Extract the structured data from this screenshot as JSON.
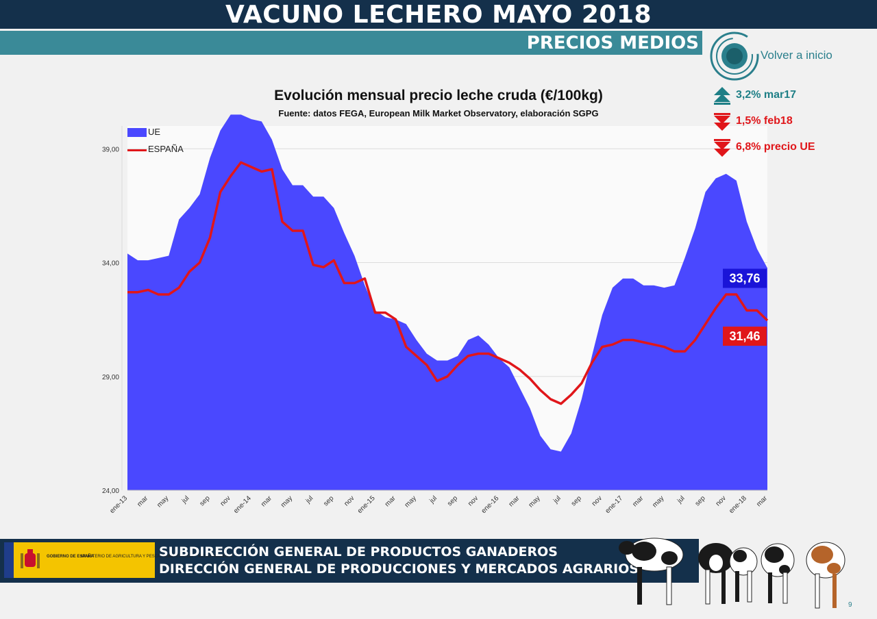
{
  "header": {
    "title": "VACUNO LECHERO MAYO 2018",
    "subtitle": "PRECIOS MEDIOS"
  },
  "nav": {
    "home_label": "Volver a inicio"
  },
  "stats": [
    {
      "label": "3,2% mar17",
      "direction": "up",
      "color": "#1e7f86"
    },
    {
      "label": "1,5% feb18",
      "direction": "down",
      "color": "#e0161a"
    },
    {
      "label": "6,8% precio UE",
      "direction": "down",
      "color": "#e0161a"
    }
  ],
  "chart_data": {
    "type": "area",
    "title": "Evolución mensual precio leche cruda (€/100kg)",
    "subtitle": "Fuente: datos FEGA, European Milk Market Observatory,  elaboración SGPG",
    "xlabel": "",
    "ylabel": "",
    "ylim": [
      24,
      40
    ],
    "yticks": [
      "24,00",
      "29,00",
      "34,00",
      "39,00"
    ],
    "ytick_values": [
      24,
      29,
      34,
      39
    ],
    "grid": true,
    "legend_position": "top-left",
    "x": [
      "ene-13",
      "feb-13",
      "mar-13",
      "abr-13",
      "may-13",
      "jun-13",
      "jul-13",
      "ago-13",
      "sep-13",
      "oct-13",
      "nov-13",
      "dic-13",
      "ene-14",
      "feb-14",
      "mar-14",
      "abr-14",
      "may-14",
      "jun-14",
      "jul-14",
      "ago-14",
      "sep-14",
      "oct-14",
      "nov-14",
      "dic-14",
      "ene-15",
      "feb-15",
      "mar-15",
      "abr-15",
      "may-15",
      "jun-15",
      "jul-15",
      "ago-15",
      "sep-15",
      "oct-15",
      "nov-15",
      "dic-15",
      "ene-16",
      "feb-16",
      "mar-16",
      "abr-16",
      "may-16",
      "jun-16",
      "jul-16",
      "ago-16",
      "sep-16",
      "oct-16",
      "nov-16",
      "dic-16",
      "ene-17",
      "feb-17",
      "mar-17",
      "abr-17",
      "may-17",
      "jun-17",
      "jul-17",
      "ago-17",
      "sep-17",
      "oct-17",
      "nov-17",
      "dic-17",
      "ene-18",
      "feb-18",
      "mar-18"
    ],
    "xtick_labels": [
      "ene-13",
      "mar",
      "may",
      "jul",
      "sep",
      "nov",
      "ene-14",
      "mar",
      "may",
      "jul",
      "sep",
      "nov",
      "ene-15",
      "mar",
      "may",
      "jul",
      "sep",
      "nov",
      "ene-16",
      "mar",
      "may",
      "jul",
      "sep",
      "nov",
      "ene-17",
      "mar",
      "may",
      "jul",
      "sep",
      "nov",
      "ene-18",
      "mar"
    ],
    "series": [
      {
        "name": "UE",
        "color": "#4a48ff",
        "values": [
          34.4,
          34.1,
          34.1,
          34.2,
          34.3,
          35.9,
          36.4,
          37.0,
          38.6,
          39.8,
          40.5,
          40.5,
          40.3,
          40.2,
          39.4,
          38.1,
          37.4,
          37.4,
          36.9,
          36.9,
          36.4,
          35.3,
          34.3,
          33.0,
          31.9,
          31.6,
          31.5,
          31.3,
          30.6,
          30.0,
          29.7,
          29.7,
          29.9,
          30.6,
          30.8,
          30.4,
          29.8,
          29.4,
          28.5,
          27.6,
          26.4,
          25.8,
          25.7,
          26.5,
          28.0,
          29.9,
          31.7,
          32.9,
          33.3,
          33.3,
          33.0,
          33.0,
          32.9,
          33.0,
          34.2,
          35.5,
          37.1,
          37.7,
          37.9,
          37.6,
          35.8,
          34.6,
          33.76
        ]
      },
      {
        "name": "ESPAÑA",
        "color": "#e0161a",
        "values": [
          32.7,
          32.7,
          32.8,
          32.6,
          32.6,
          32.9,
          33.6,
          34.0,
          35.1,
          37.1,
          37.8,
          38.4,
          38.2,
          38.0,
          38.1,
          35.8,
          35.4,
          35.4,
          33.9,
          33.8,
          34.1,
          33.1,
          33.1,
          33.3,
          31.8,
          31.8,
          31.5,
          30.3,
          29.9,
          29.5,
          28.8,
          29.0,
          29.5,
          29.9,
          30.0,
          30.0,
          29.8,
          29.6,
          29.3,
          28.9,
          28.4,
          28.0,
          27.8,
          28.2,
          28.7,
          29.6,
          30.3,
          30.4,
          30.6,
          30.6,
          30.5,
          30.4,
          30.3,
          30.1,
          30.1,
          30.6,
          31.3,
          32.0,
          32.6,
          32.6,
          31.9,
          31.9,
          31.46
        ]
      }
    ],
    "end_labels": [
      {
        "series": "UE",
        "text": "33,76",
        "color": "#1a14d8"
      },
      {
        "series": "ESPAÑA",
        "text": "31,46",
        "color": "#e0161a"
      }
    ]
  },
  "footer": {
    "line1": "SUBDIRECCIÓN GENERAL DE PRODUCTOS GANADEROS",
    "line2": "DIRECCIÓN GENERAL DE PRODUCCIONES Y MERCADOS AGRARIOS",
    "gov_text": "GOBIERNO DE ESPAÑA",
    "ministry_text": "MINISTERIO DE AGRICULTURA Y PESCA, ALIMENTACIÓN Y MEDIO AMBIENTE",
    "page_number": "9"
  }
}
